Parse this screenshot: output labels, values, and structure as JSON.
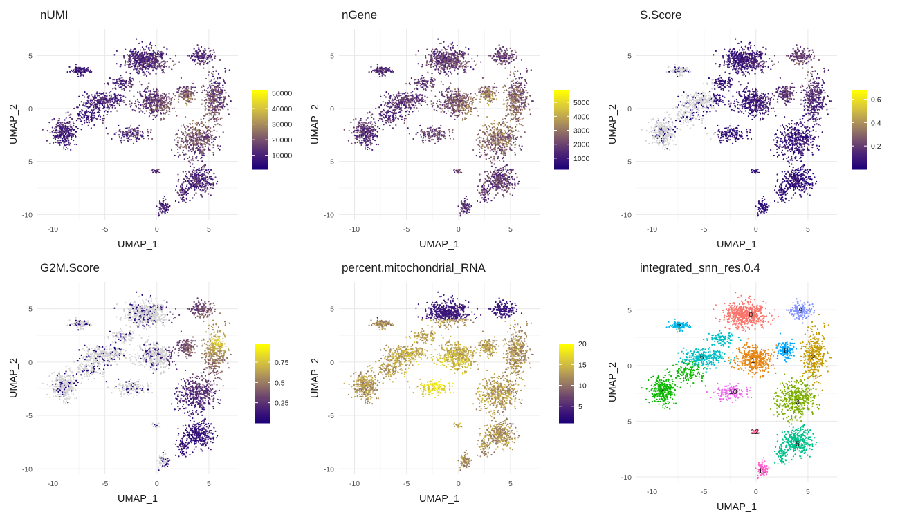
{
  "chart_data": [
    {
      "type": "scatter",
      "title": "nUMI",
      "xlabel": "UMAP_1",
      "ylabel": "UMAP_2",
      "xlim": [
        -11.5,
        7.8
      ],
      "ylim": [
        -10.5,
        7.5
      ],
      "xticks": [
        -10,
        -5,
        0,
        5
      ],
      "yticks": [
        5,
        0,
        -5,
        -10
      ],
      "grid": true,
      "colorbar": {
        "min": 1000,
        "max": 52000,
        "ticks": [
          10000,
          20000,
          30000,
          40000,
          50000
        ],
        "palette": "plasma",
        "na_grey": false
      },
      "gradient": {
        "hot_x": 3.0,
        "hot_y": -0.5,
        "base": 0.14,
        "amp": 0.45,
        "noise": 0.35
      }
    },
    {
      "type": "scatter",
      "title": "nGene",
      "xlabel": "UMAP_1",
      "ylabel": "UMAP_2",
      "xlim": [
        -11.5,
        7.8
      ],
      "ylim": [
        -10.5,
        7.5
      ],
      "xticks": [
        -10,
        -5,
        0,
        5
      ],
      "yticks": [
        5,
        0,
        -5,
        -10
      ],
      "grid": true,
      "colorbar": {
        "min": 200,
        "max": 5900,
        "ticks": [
          1000,
          2000,
          3000,
          4000,
          5000
        ],
        "palette": "plasma",
        "na_grey": false
      },
      "gradient": {
        "hot_x": 3.0,
        "hot_y": -0.5,
        "base": 0.22,
        "amp": 0.48,
        "noise": 0.35
      }
    },
    {
      "type": "scatter",
      "title": "S.Score",
      "xlabel": "UMAP_1",
      "ylabel": "UMAP_2",
      "xlim": [
        -11.5,
        7.8
      ],
      "ylim": [
        -10.5,
        7.5
      ],
      "xticks": [
        -10,
        -5,
        0,
        5
      ],
      "yticks": [
        5,
        0,
        -5,
        -10
      ],
      "grid": true,
      "colorbar": {
        "min": 0,
        "max": 0.68,
        "ticks": [
          0.2,
          0.4,
          0.6
        ],
        "palette": "plasma",
        "na_grey": true
      },
      "gradient": {
        "hot_x": 4.0,
        "hot_y": 3.5,
        "base": 0.05,
        "amp": 0.4,
        "noise": 0.3,
        "grey_left_x": -4.0
      }
    },
    {
      "type": "scatter",
      "title": "G2M.Score",
      "xlabel": "UMAP_1",
      "ylabel": "UMAP_2",
      "xlim": [
        -11.5,
        7.8
      ],
      "ylim": [
        -10.5,
        7.5
      ],
      "xticks": [
        -10,
        -5,
        0,
        5
      ],
      "yticks": [
        5,
        0,
        -5,
        -10
      ],
      "grid": true,
      "colorbar": {
        "min": 0,
        "max": 0.98,
        "ticks": [
          0.25,
          0.5,
          0.75
        ],
        "palette": "plasma",
        "na_grey": true
      },
      "gradient": {
        "hot_x": 6.0,
        "hot_y": 2.0,
        "base": 0.05,
        "amp": 0.8,
        "noise": 0.25,
        "grey_left_x": 1.0
      }
    },
    {
      "type": "scatter",
      "title": "percent.mitochondrial_RNA",
      "xlabel": "UMAP_1",
      "ylabel": "UMAP_2",
      "xlim": [
        -11.5,
        7.8
      ],
      "ylim": [
        -10.5,
        7.5
      ],
      "xticks": [
        -10,
        -5,
        0,
        5
      ],
      "yticks": [
        5,
        0,
        -5,
        -10
      ],
      "grid": true,
      "colorbar": {
        "min": 1,
        "max": 20,
        "ticks": [
          5,
          10,
          15,
          20
        ],
        "palette": "plasma",
        "na_grey": false
      },
      "gradient": {
        "hot_x": -2.0,
        "hot_y": -2.0,
        "base": 0.55,
        "amp": 0.4,
        "noise": 0.3,
        "cold_top_y": 4.0
      }
    },
    {
      "type": "scatter",
      "title": "integrated_snn_res.0.4",
      "xlabel": "UMAP_1",
      "ylabel": "UMAP_2",
      "xlim": [
        -11.5,
        7.8
      ],
      "ylim": [
        -10.5,
        7.5
      ],
      "xticks": [
        -10,
        -5,
        0,
        5
      ],
      "yticks": [
        5,
        0,
        -5,
        -10
      ],
      "grid": true,
      "clusters": [
        {
          "label": "0",
          "x": -0.5,
          "y": 4.6,
          "color": "#F8766D"
        },
        {
          "label": "1",
          "x": -0.3,
          "y": 0.5,
          "color": "#E68613"
        },
        {
          "label": "2",
          "x": 5.5,
          "y": 0.8,
          "color": "#C49A00"
        },
        {
          "label": "3",
          "x": 4.0,
          "y": -3.2,
          "color": "#7CAE00"
        },
        {
          "label": "4",
          "x": -9.0,
          "y": -2.3,
          "color": "#0CB702"
        },
        {
          "label": "5",
          "x": 4.0,
          "y": -7.0,
          "color": "#00C08B"
        },
        {
          "label": "6",
          "x": -5.2,
          "y": 0.8,
          "color": "#00BFC4"
        },
        {
          "label": "7",
          "x": -7.4,
          "y": 3.5,
          "color": "#00B8E7"
        },
        {
          "label": "8",
          "x": 2.9,
          "y": 1.4,
          "color": "#00A9FF"
        },
        {
          "label": "9",
          "x": 4.3,
          "y": 5.0,
          "color": "#8494FF"
        },
        {
          "label": "10",
          "x": -2.2,
          "y": -2.3,
          "color": "#ED68ED"
        },
        {
          "label": "11",
          "x": 0.6,
          "y": -9.4,
          "color": "#FF61CC"
        },
        {
          "label": "12",
          "x": -0.1,
          "y": -5.9,
          "color": "#FF68A1"
        }
      ]
    }
  ]
}
